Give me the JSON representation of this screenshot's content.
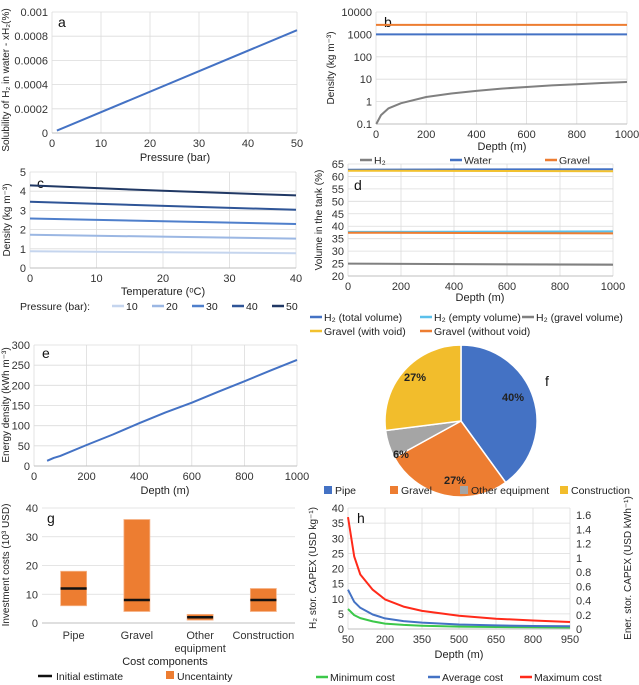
{
  "chart_data": [
    {
      "panel": "a",
      "type": "line",
      "xlabel": "Pressure (bar)",
      "ylabel": "Solubility of H₂ in water - xH₂(%)",
      "xlim": [
        0,
        50
      ],
      "ylim": [
        0,
        0.001
      ],
      "xticks": [
        0,
        10,
        20,
        30,
        40,
        50
      ],
      "yticks": [
        0,
        0.0002,
        0.0004,
        0.0006,
        0.0008,
        0.001
      ],
      "ytick_labels": [
        "0",
        "0.0002",
        "0.0004",
        "0.0006",
        "0.0008",
        "0.001"
      ],
      "grid": true,
      "series": [
        {
          "color": "#4472C4",
          "x": [
            1,
            50
          ],
          "y": [
            2e-05,
            0.00085
          ]
        }
      ]
    },
    {
      "panel": "b",
      "type": "line",
      "yscale": "log",
      "xlabel": "Depth (m)",
      "ylabel": "Density (kg m⁻³)",
      "xlim": [
        0,
        1000
      ],
      "ylim": [
        0.1,
        10000
      ],
      "xticks": [
        0,
        200,
        400,
        600,
        800,
        1000
      ],
      "yticks": [
        0.1,
        1,
        10,
        100,
        1000,
        10000
      ],
      "ytick_labels": [
        "0.1",
        "1",
        "10",
        "100",
        "1000",
        "10000"
      ],
      "grid": true,
      "legend": "bottom",
      "series": [
        {
          "name": "H₂",
          "color": "#808080",
          "x": [
            1,
            20,
            50,
            100,
            200,
            300,
            400,
            500,
            600,
            700,
            800,
            900,
            1000
          ],
          "y": [
            0.1,
            0.25,
            0.5,
            0.85,
            1.6,
            2.3,
            3.0,
            3.8,
            4.5,
            5.3,
            6.0,
            6.8,
            7.5
          ]
        },
        {
          "name": "Water",
          "color": "#4472C4",
          "x": [
            0,
            1000
          ],
          "y": [
            1000,
            1000
          ]
        },
        {
          "name": "Gravel",
          "color": "#ED7D31",
          "x": [
            0,
            1000
          ],
          "y": [
            2650,
            2650
          ]
        }
      ]
    },
    {
      "panel": "c",
      "type": "line",
      "xlabel": "Temperature (ᵒC)",
      "ylabel": "Density (kg m⁻³)",
      "xlim": [
        0,
        40
      ],
      "ylim": [
        0,
        5
      ],
      "xticks": [
        0,
        10,
        20,
        30,
        40
      ],
      "yticks": [
        0,
        1,
        2,
        3,
        4,
        5
      ],
      "grid": true,
      "legend": "bottom",
      "legend_title": "Pressure (bar):",
      "series": [
        {
          "name": "10",
          "color": "#C5D5EE",
          "x": [
            0,
            40
          ],
          "y": [
            0.87,
            0.77
          ]
        },
        {
          "name": "20",
          "color": "#9BB7E3",
          "x": [
            0,
            40
          ],
          "y": [
            1.73,
            1.53
          ]
        },
        {
          "name": "30",
          "color": "#4F7FCB",
          "x": [
            0,
            40
          ],
          "y": [
            2.58,
            2.29
          ]
        },
        {
          "name": "40",
          "color": "#2F5597",
          "x": [
            0,
            40
          ],
          "y": [
            3.45,
            3.03
          ]
        },
        {
          "name": "50",
          "color": "#203864",
          "x": [
            0,
            20,
            40
          ],
          "y": [
            4.3,
            4.02,
            3.78
          ]
        }
      ]
    },
    {
      "panel": "d",
      "type": "line",
      "xlabel": "Depth (m)",
      "ylabel": "Volume in the tank (%)",
      "xlim": [
        0,
        1000
      ],
      "ylim": [
        20,
        65
      ],
      "xticks": [
        0,
        200,
        400,
        600,
        800,
        1000
      ],
      "yticks": [
        20,
        25,
        30,
        35,
        40,
        45,
        50,
        55,
        60,
        65
      ],
      "grid": true,
      "legend": "bottom",
      "series": [
        {
          "name": "H₂  (total volume)",
          "color": "#4472C4",
          "x": [
            0,
            1000
          ],
          "y": [
            62.7,
            62.9
          ]
        },
        {
          "name": "H₂ (empty volume)",
          "color": "#5BC0EB",
          "x": [
            0,
            1000
          ],
          "y": [
            37.7,
            37.9
          ]
        },
        {
          "name": "H₂ (gravel volume)",
          "color": "#808080",
          "x": [
            0,
            1000
          ],
          "y": [
            25.0,
            24.5
          ]
        },
        {
          "name": "Gravel (with void)",
          "color": "#F2C12E",
          "x": [
            0,
            1000
          ],
          "y": [
            62.3,
            62.1
          ]
        },
        {
          "name": "Gravel (without void)",
          "color": "#ED7D31",
          "x": [
            0,
            1000
          ],
          "y": [
            37.4,
            37.1
          ]
        }
      ]
    },
    {
      "panel": "e",
      "type": "line",
      "xlabel": "Depth (m)",
      "ylabel": "Energy density (kWh m⁻³)",
      "xlim": [
        0,
        1000
      ],
      "ylim": [
        0,
        300
      ],
      "xticks": [
        0,
        200,
        400,
        600,
        800,
        1000
      ],
      "yticks": [
        0,
        50,
        100,
        150,
        200,
        250,
        300
      ],
      "grid": true,
      "series": [
        {
          "color": "#4472C4",
          "x": [
            50,
            75,
            100,
            200,
            300,
            400,
            500,
            600,
            700,
            800,
            900,
            1000
          ],
          "y": [
            13,
            20,
            25,
            52,
            78,
            106,
            133,
            157,
            184,
            210,
            237,
            263
          ]
        }
      ]
    },
    {
      "panel": "f",
      "type": "pie",
      "legend": "bottom",
      "categories": [
        "Pipe",
        "Gravel",
        "Other equipment",
        "Construction"
      ],
      "values": [
        40,
        27,
        6,
        27
      ],
      "labels": [
        "40%",
        "27%",
        "6%",
        "27%"
      ],
      "colors": [
        "#4472C4",
        "#ED7D31",
        "#A5A5A5",
        "#F2BD2C"
      ]
    },
    {
      "panel": "g",
      "type": "bar",
      "xlabel": "Cost components",
      "ylabel": "Investment costs (10³ USD)",
      "ylim": [
        0,
        40
      ],
      "yticks": [
        0,
        10,
        20,
        30,
        40
      ],
      "grid": true,
      "legend": "bottom",
      "categories": [
        [
          "Pipe"
        ],
        [
          "Gravel"
        ],
        [
          "Other",
          "equipment"
        ],
        [
          "Construction"
        ]
      ],
      "initial_estimate": [
        12,
        8,
        2,
        8
      ],
      "uncertainty_low": [
        6,
        4,
        1,
        4
      ],
      "uncertainty_high": [
        18,
        36,
        3,
        12
      ],
      "legend_labels": {
        "initial": "Initial estimate",
        "uncertainty": "Uncentainty"
      },
      "colors": {
        "initial": "#111111",
        "uncertainty": "#ED7D31"
      }
    },
    {
      "panel": "h",
      "type": "line",
      "xlabel": "Depth (m)",
      "ylabel": "H₂ stor. CAPEX (USD kg⁻¹)",
      "ylabel_right": "Ener. stor. CAPEX (USD kWh⁻¹)",
      "xlim": [
        50,
        950
      ],
      "ylim": [
        0,
        40
      ],
      "ylim_right": [
        0,
        1.7
      ],
      "xticks": [
        50,
        200,
        350,
        500,
        650,
        800,
        950
      ],
      "yticks": [
        0,
        5,
        10,
        15,
        20,
        25,
        30,
        35,
        40
      ],
      "yticks_right": [
        0,
        0.2,
        0.4,
        0.6,
        0.8,
        1,
        1.2,
        1.4,
        1.6
      ],
      "grid": true,
      "legend": "bottom",
      "series": [
        {
          "name": "Minimum cost",
          "color": "#3CC84A",
          "x": [
            50,
            75,
            100,
            150,
            200,
            275,
            350,
            500,
            650,
            800,
            950
          ],
          "y": [
            6.6,
            4.6,
            3.6,
            2.5,
            1.8,
            1.35,
            1.1,
            0.8,
            0.65,
            0.55,
            0.5
          ]
        },
        {
          "name": "Average cost",
          "color": "#4472C4",
          "x": [
            50,
            75,
            100,
            150,
            200,
            275,
            350,
            500,
            650,
            800,
            950
          ],
          "y": [
            13,
            9,
            7,
            4.8,
            3.5,
            2.6,
            2.1,
            1.5,
            1.2,
            1.0,
            0.9
          ]
        },
        {
          "name": "Maximum cost",
          "color": "#FF2A1A",
          "x": [
            50,
            75,
            100,
            150,
            200,
            275,
            350,
            500,
            650,
            800,
            950
          ],
          "y": [
            37,
            24,
            18,
            13,
            9.8,
            7.4,
            6.0,
            4.4,
            3.4,
            2.8,
            2.3
          ]
        }
      ]
    }
  ]
}
